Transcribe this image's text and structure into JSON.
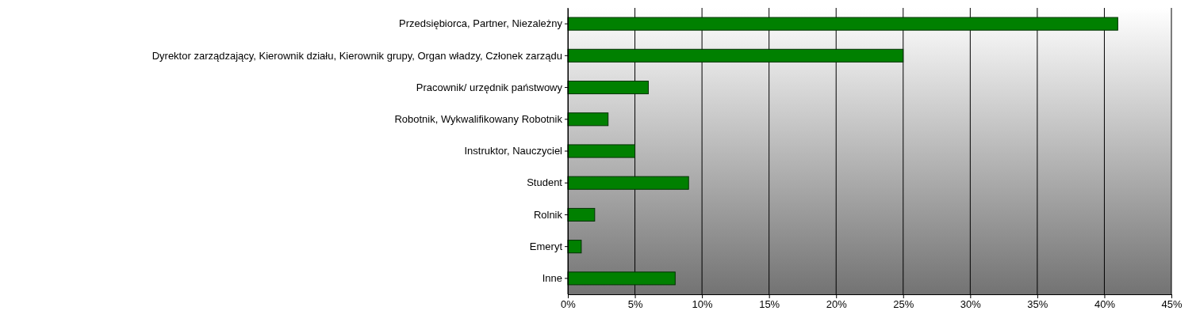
{
  "chart_data": {
    "type": "bar",
    "orientation": "horizontal",
    "categories": [
      "Przedsiębiorca, Partner, Niezależny",
      "Dyrektor zarządzający, Kierownik działu, Kierownik grupy, Organ władzy, Członek zarządu",
      "Pracownik/ urzędnik państwowy",
      "Robotnik, Wykwalifikowany Robotnik",
      "Instruktor, Nauczyciel",
      "Student",
      "Rolnik",
      "Emeryt",
      "Inne"
    ],
    "values": [
      41,
      25,
      6,
      3,
      5,
      9,
      2,
      1,
      8
    ],
    "color": "#008000",
    "xlim": [
      0,
      45
    ],
    "xticks": [
      {
        "value": 0,
        "label": "0%"
      },
      {
        "value": 5,
        "label": "5%"
      },
      {
        "value": 10,
        "label": "10%"
      },
      {
        "value": 15,
        "label": "15%"
      },
      {
        "value": 20,
        "label": "20%"
      },
      {
        "value": 25,
        "label": "25%"
      },
      {
        "value": 30,
        "label": "30%"
      },
      {
        "value": 35,
        "label": "35%"
      },
      {
        "value": 40,
        "label": "40%"
      },
      {
        "value": 45,
        "label": "45%"
      }
    ],
    "grid": "x"
  }
}
